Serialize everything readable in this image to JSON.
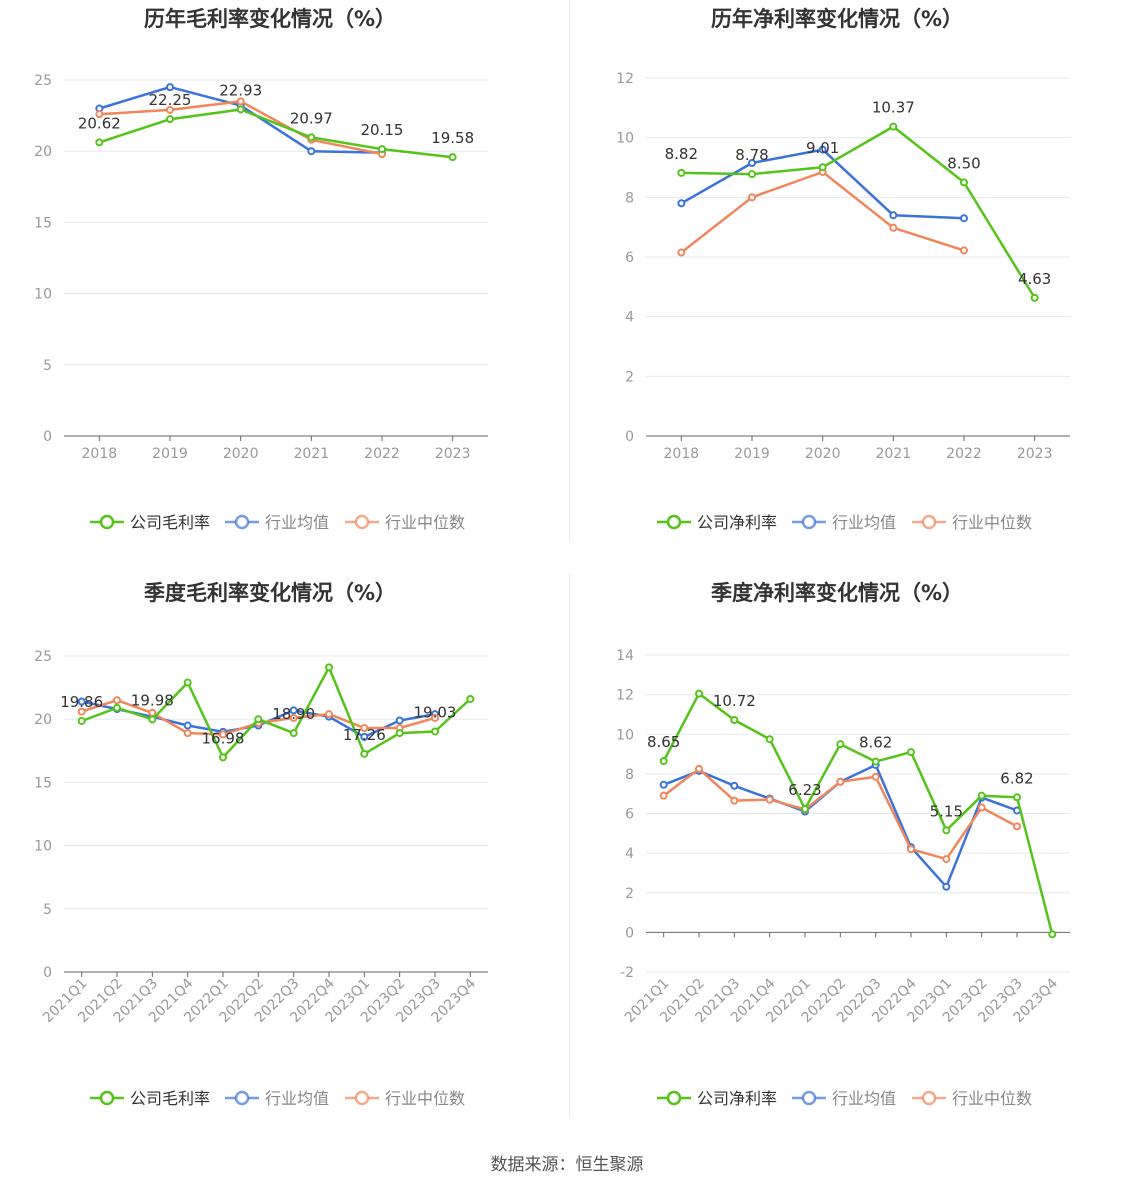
{
  "source": "数据来源：恒生聚源",
  "legend_labels": {
    "gross": [
      "公司毛利率",
      "行业均值",
      "行业中位数"
    ],
    "net": [
      "公司净利率",
      "行业均值",
      "行业中位数"
    ]
  },
  "colors": {
    "company": "#52c41a",
    "avg": "#3a74d9",
    "median": "#f0865a",
    "grid": "#e6e8ef",
    "axis": "#666666",
    "label": "#999999",
    "title": "#333333"
  },
  "chart_data": [
    {
      "type": "line",
      "title": "历年毛利率变化情况（%）",
      "categories": [
        "2018",
        "2019",
        "2020",
        "2021",
        "2022",
        "2023"
      ],
      "ylim": [
        0,
        25
      ],
      "yticks": [
        0,
        5,
        10,
        15,
        20,
        25
      ],
      "grid": true,
      "legend_position": "bottom",
      "series": [
        {
          "name": "公司毛利率",
          "values": [
            20.62,
            22.25,
            22.93,
            20.97,
            20.15,
            19.58
          ]
        },
        {
          "name": "行业均值",
          "values": [
            23.0,
            24.5,
            23.2,
            20.0,
            19.9,
            null
          ]
        },
        {
          "name": "行业中位数",
          "values": [
            22.6,
            22.9,
            23.5,
            20.8,
            19.8,
            null
          ]
        }
      ],
      "data_labels": [
        {
          "text": "20.62",
          "i": 0
        },
        {
          "text": "22.25",
          "i": 1
        },
        {
          "text": "22.93",
          "i": 2
        },
        {
          "text": "20.97",
          "i": 3
        },
        {
          "text": "20.15",
          "i": 4
        },
        {
          "text": "19.58",
          "i": 5
        }
      ]
    },
    {
      "type": "line",
      "title": "历年净利率变化情况（%）",
      "categories": [
        "2018",
        "2019",
        "2020",
        "2021",
        "2022",
        "2023"
      ],
      "ylim": [
        0,
        12
      ],
      "yticks": [
        0,
        2,
        4,
        6,
        8,
        10,
        12
      ],
      "grid": true,
      "legend_position": "bottom",
      "series": [
        {
          "name": "公司净利率",
          "values": [
            8.82,
            8.78,
            9.01,
            10.37,
            8.5,
            4.63
          ]
        },
        {
          "name": "行业均值",
          "values": [
            7.8,
            9.15,
            9.6,
            7.4,
            7.3,
            null
          ]
        },
        {
          "name": "行业中位数",
          "values": [
            6.15,
            8.0,
            8.85,
            6.98,
            6.22,
            null
          ]
        }
      ],
      "data_labels": [
        {
          "text": "8.82",
          "i": 0
        },
        {
          "text": "8.78",
          "i": 1
        },
        {
          "text": "9.01",
          "i": 2
        },
        {
          "text": "10.37",
          "i": 3
        },
        {
          "text": "8.50",
          "i": 4
        },
        {
          "text": "4.63",
          "i": 5
        }
      ]
    },
    {
      "type": "line",
      "title": "季度毛利率变化情况（%）",
      "categories": [
        "2021Q1",
        "2021Q2",
        "2021Q3",
        "2021Q4",
        "2022Q1",
        "2022Q2",
        "2022Q3",
        "2022Q4",
        "2023Q1",
        "2023Q2",
        "2023Q3",
        "2023Q4"
      ],
      "ylim": [
        0,
        25
      ],
      "yticks": [
        0,
        5,
        10,
        15,
        20,
        25
      ],
      "grid": true,
      "legend_position": "bottom",
      "series": [
        {
          "name": "公司毛利率",
          "values": [
            19.86,
            20.9,
            19.98,
            22.9,
            16.98,
            20.0,
            18.9,
            24.1,
            17.26,
            18.9,
            19.03,
            21.6
          ]
        },
        {
          "name": "行业均值",
          "values": [
            21.4,
            20.8,
            20.2,
            19.5,
            19.0,
            19.5,
            20.7,
            20.2,
            18.6,
            19.9,
            20.4,
            null
          ]
        },
        {
          "name": "行业中位数",
          "values": [
            20.6,
            21.5,
            20.5,
            18.9,
            18.8,
            19.7,
            20.1,
            20.4,
            19.3,
            19.3,
            20.1,
            null
          ]
        }
      ],
      "data_labels": [
        {
          "text": "19.86",
          "i": 0
        },
        {
          "text": "19.98",
          "i": 2
        },
        {
          "text": "16.98",
          "i": 4
        },
        {
          "text": "18.90",
          "i": 6
        },
        {
          "text": "17.26",
          "i": 8
        },
        {
          "text": "19.03",
          "i": 10
        }
      ]
    },
    {
      "type": "line",
      "title": "季度净利率变化情况（%）",
      "categories": [
        "2021Q1",
        "2021Q2",
        "2021Q3",
        "2021Q4",
        "2022Q1",
        "2022Q2",
        "2022Q3",
        "2022Q4",
        "2023Q1",
        "2023Q2",
        "2023Q3",
        "2023Q4"
      ],
      "ylim": [
        -2,
        14
      ],
      "yticks": [
        -2,
        0,
        2,
        4,
        6,
        8,
        10,
        12,
        14
      ],
      "grid": true,
      "legend_position": "bottom",
      "series": [
        {
          "name": "公司净利率",
          "values": [
            8.65,
            12.05,
            10.72,
            9.75,
            6.23,
            9.5,
            8.62,
            9.1,
            5.15,
            6.9,
            6.82,
            -0.1
          ]
        },
        {
          "name": "行业均值",
          "values": [
            7.45,
            8.15,
            7.4,
            6.75,
            6.1,
            7.6,
            8.45,
            4.3,
            2.3,
            6.8,
            6.15,
            null
          ]
        },
        {
          "name": "行业中位数",
          "values": [
            6.9,
            8.25,
            6.65,
            6.7,
            6.2,
            7.6,
            7.85,
            4.2,
            3.7,
            6.3,
            5.35,
            null
          ]
        }
      ],
      "data_labels": [
        {
          "text": "8.65",
          "i": 0
        },
        {
          "text": "10.72",
          "i": 2
        },
        {
          "text": "6.23",
          "i": 4
        },
        {
          "text": "8.62",
          "i": 6
        },
        {
          "text": "5.15",
          "i": 8
        },
        {
          "text": "6.82",
          "i": 10
        }
      ]
    }
  ]
}
